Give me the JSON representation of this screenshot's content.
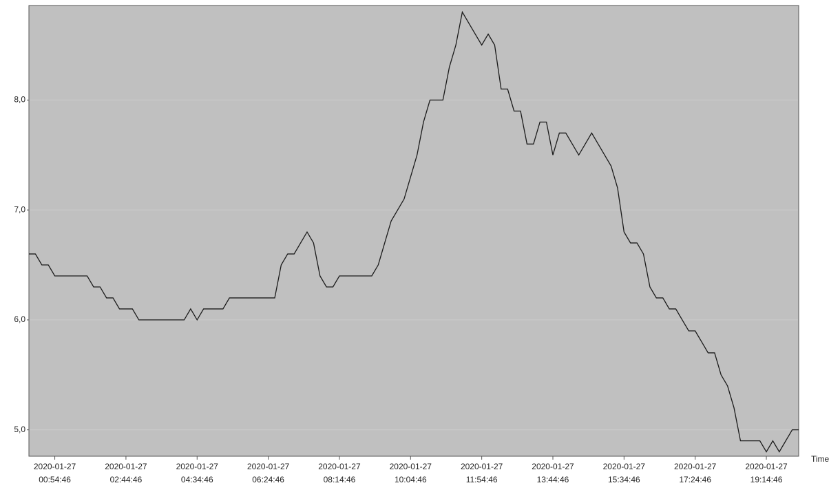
{
  "chart_data": {
    "type": "line",
    "x_label": "Time",
    "color": "#1a1a1a",
    "grid": true,
    "x": [
      "2020-01-27 00:14:46",
      "2020-01-27 00:24:46",
      "2020-01-27 00:34:46",
      "2020-01-27 00:44:46",
      "2020-01-27 00:54:46",
      "2020-01-27 01:04:46",
      "2020-01-27 01:14:46",
      "2020-01-27 01:24:46",
      "2020-01-27 01:34:46",
      "2020-01-27 01:44:46",
      "2020-01-27 01:54:46",
      "2020-01-27 02:04:46",
      "2020-01-27 02:14:46",
      "2020-01-27 02:24:46",
      "2020-01-27 02:34:46",
      "2020-01-27 02:44:46",
      "2020-01-27 02:54:46",
      "2020-01-27 03:04:46",
      "2020-01-27 03:14:46",
      "2020-01-27 03:24:46",
      "2020-01-27 03:34:46",
      "2020-01-27 03:44:46",
      "2020-01-27 03:54:46",
      "2020-01-27 04:04:46",
      "2020-01-27 04:14:46",
      "2020-01-27 04:24:46",
      "2020-01-27 04:34:46",
      "2020-01-27 04:44:46",
      "2020-01-27 04:54:46",
      "2020-01-27 05:04:46",
      "2020-01-27 05:14:46",
      "2020-01-27 05:24:46",
      "2020-01-27 05:34:46",
      "2020-01-27 05:44:46",
      "2020-01-27 05:54:46",
      "2020-01-27 06:04:46",
      "2020-01-27 06:14:46",
      "2020-01-27 06:24:46",
      "2020-01-27 06:34:46",
      "2020-01-27 06:44:46",
      "2020-01-27 06:54:46",
      "2020-01-27 07:04:46",
      "2020-01-27 07:14:46",
      "2020-01-27 07:24:46",
      "2020-01-27 07:34:46",
      "2020-01-27 07:44:46",
      "2020-01-27 07:54:46",
      "2020-01-27 08:04:46",
      "2020-01-27 08:14:46",
      "2020-01-27 08:24:46",
      "2020-01-27 08:34:46",
      "2020-01-27 08:44:46",
      "2020-01-27 08:54:46",
      "2020-01-27 09:04:46",
      "2020-01-27 09:14:46",
      "2020-01-27 09:24:46",
      "2020-01-27 09:34:46",
      "2020-01-27 09:44:46",
      "2020-01-27 09:54:46",
      "2020-01-27 10:04:46",
      "2020-01-27 10:14:46",
      "2020-01-27 10:24:46",
      "2020-01-27 10:34:46",
      "2020-01-27 10:44:46",
      "2020-01-27 10:54:46",
      "2020-01-27 11:04:46",
      "2020-01-27 11:14:46",
      "2020-01-27 11:24:46",
      "2020-01-27 11:34:46",
      "2020-01-27 11:44:46",
      "2020-01-27 11:54:46",
      "2020-01-27 12:04:46",
      "2020-01-27 12:14:46",
      "2020-01-27 12:24:46",
      "2020-01-27 12:34:46",
      "2020-01-27 12:44:46",
      "2020-01-27 12:54:46",
      "2020-01-27 13:04:46",
      "2020-01-27 13:14:46",
      "2020-01-27 13:24:46",
      "2020-01-27 13:34:46",
      "2020-01-27 13:44:46",
      "2020-01-27 13:54:46",
      "2020-01-27 14:04:46",
      "2020-01-27 14:14:46",
      "2020-01-27 14:24:46",
      "2020-01-27 14:34:46",
      "2020-01-27 14:44:46",
      "2020-01-27 14:54:46",
      "2020-01-27 15:04:46",
      "2020-01-27 15:14:46",
      "2020-01-27 15:24:46",
      "2020-01-27 15:34:46",
      "2020-01-27 15:44:46",
      "2020-01-27 15:54:46",
      "2020-01-27 16:04:46",
      "2020-01-27 16:14:46",
      "2020-01-27 16:24:46",
      "2020-01-27 16:34:46",
      "2020-01-27 16:44:46",
      "2020-01-27 16:54:46",
      "2020-01-27 17:04:46",
      "2020-01-27 17:14:46",
      "2020-01-27 17:24:46",
      "2020-01-27 17:34:46",
      "2020-01-27 17:44:46",
      "2020-01-27 17:54:46",
      "2020-01-27 18:04:46",
      "2020-01-27 18:14:46",
      "2020-01-27 18:24:46",
      "2020-01-27 18:34:46",
      "2020-01-27 18:44:46",
      "2020-01-27 18:54:46",
      "2020-01-27 19:04:46",
      "2020-01-27 19:14:46",
      "2020-01-27 19:24:46",
      "2020-01-27 19:34:46",
      "2020-01-27 19:44:46",
      "2020-01-27 19:54:46",
      "2020-01-27 20:04:46"
    ],
    "values": [
      6.6,
      6.6,
      6.5,
      6.5,
      6.4,
      6.4,
      6.4,
      6.4,
      6.4,
      6.4,
      6.3,
      6.3,
      6.2,
      6.2,
      6.1,
      6.1,
      6.1,
      6.0,
      6.0,
      6.0,
      6.0,
      6.0,
      6.0,
      6.0,
      6.0,
      6.1,
      6.0,
      6.1,
      6.1,
      6.1,
      6.1,
      6.2,
      6.2,
      6.2,
      6.2,
      6.2,
      6.2,
      6.2,
      6.2,
      6.5,
      6.6,
      6.6,
      6.7,
      6.8,
      6.7,
      6.4,
      6.3,
      6.3,
      6.4,
      6.4,
      6.4,
      6.4,
      6.4,
      6.4,
      6.5,
      6.7,
      6.9,
      7.0,
      7.1,
      7.3,
      7.5,
      7.8,
      8.0,
      8.0,
      8.0,
      8.3,
      8.5,
      8.8,
      8.7,
      8.6,
      8.5,
      8.6,
      8.5,
      8.1,
      8.1,
      7.9,
      7.9,
      7.6,
      7.6,
      7.8,
      7.8,
      7.5,
      7.7,
      7.7,
      7.6,
      7.5,
      7.6,
      7.7,
      7.6,
      7.5,
      7.4,
      7.2,
      6.8,
      6.7,
      6.7,
      6.6,
      6.3,
      6.2,
      6.2,
      6.1,
      6.1,
      6.0,
      5.9,
      5.9,
      5.8,
      5.7,
      5.7,
      5.5,
      5.4,
      5.2,
      4.9,
      4.9,
      4.9,
      4.9,
      4.8,
      4.9,
      4.8,
      4.9,
      5.0,
      5.0
    ],
    "xlim": [
      "2020-01-27 00:14:46",
      "2020-01-27 20:04:46"
    ],
    "xticks": [
      "2020-01-27 00:54:46",
      "2020-01-27 02:44:46",
      "2020-01-27 04:34:46",
      "2020-01-27 06:24:46",
      "2020-01-27 08:14:46",
      "2020-01-27 10:04:46",
      "2020-01-27 11:54:46",
      "2020-01-27 13:44:46",
      "2020-01-27 15:34:46",
      "2020-01-27 17:24:46",
      "2020-01-27 19:14:46"
    ],
    "ylim": [
      4.76,
      8.86
    ],
    "yticks": [
      {
        "value": 5,
        "label": "5,0"
      },
      {
        "value": 6,
        "label": "6,0"
      },
      {
        "value": 7,
        "label": "7,0"
      },
      {
        "value": 8,
        "label": "8,0"
      }
    ]
  }
}
